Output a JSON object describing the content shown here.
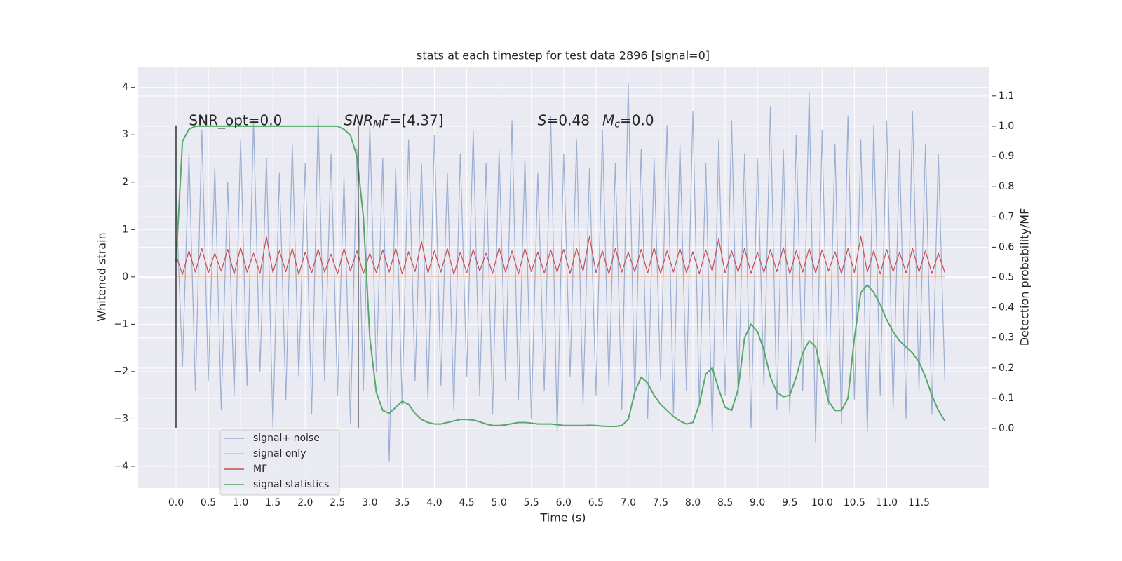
{
  "chart_data": {
    "type": "line",
    "title": "stats at each timestep for test data 2896 [signal=0]",
    "xlabel": "Time (s)",
    "ylabel": "Whitened strain",
    "y2label": "Detection probability/MF",
    "xlim": [
      -0.586,
      12.58
    ],
    "ylim": [
      -4.46,
      4.44
    ],
    "y2lim": [
      -0.197,
      1.197
    ],
    "xticks": [
      {
        "value": 0,
        "label": "0.0"
      },
      0.5,
      {
        "value": 1,
        "label": "1.0"
      },
      1.5,
      {
        "value": 2,
        "label": "2.0"
      },
      2.5,
      {
        "value": 3,
        "label": "3.0"
      },
      3.5,
      {
        "value": 4,
        "label": "4.0"
      },
      4.5,
      {
        "value": 5,
        "label": "5.0"
      },
      5.5,
      {
        "value": 6,
        "label": "6.0"
      },
      6.5,
      {
        "value": 7,
        "label": "7.0"
      },
      7.5,
      {
        "value": 8,
        "label": "8.0"
      },
      8.5,
      {
        "value": 9,
        "label": "9.0"
      },
      9.5,
      {
        "value": 10,
        "label": "10.0"
      },
      10.5,
      {
        "value": 11,
        "label": "11.0"
      },
      11.5
    ],
    "yticks": [
      {
        "value": -4,
        "label": "−4"
      },
      {
        "value": -3,
        "label": "−3"
      },
      {
        "value": -2,
        "label": "−2"
      },
      {
        "value": -1,
        "label": "−1"
      },
      0,
      1,
      2,
      3,
      4
    ],
    "y2ticks": [
      {
        "value": 0,
        "label": "0.0"
      },
      0.1,
      0.2,
      0.3,
      0.4,
      0.5,
      0.6,
      0.7,
      0.8,
      0.9,
      {
        "value": 1,
        "label": "1.0"
      },
      1.1
    ],
    "grid": true,
    "legend": "lower left",
    "x": [
      0,
      0.1,
      0.2,
      0.3,
      0.4,
      0.5,
      0.6,
      0.7,
      0.8,
      0.9,
      1,
      1.1,
      1.2,
      1.3,
      1.4,
      1.5,
      1.6,
      1.7,
      1.8,
      1.9,
      2,
      2.1,
      2.2,
      2.3,
      2.4,
      2.5,
      2.6,
      2.7,
      2.8,
      2.9,
      3,
      3.1,
      3.2,
      3.3,
      3.4,
      3.5,
      3.6,
      3.7,
      3.8,
      3.9,
      4,
      4.1,
      4.2,
      4.3,
      4.4,
      4.5,
      4.6,
      4.7,
      4.8,
      4.9,
      5,
      5.1,
      5.2,
      5.3,
      5.4,
      5.5,
      5.6,
      5.7,
      5.8,
      5.9,
      6,
      6.1,
      6.2,
      6.3,
      6.4,
      6.5,
      6.6,
      6.7,
      6.8,
      6.9,
      7,
      7.1,
      7.2,
      7.3,
      7.4,
      7.5,
      7.6,
      7.7,
      7.8,
      7.9,
      8,
      8.1,
      8.2,
      8.3,
      8.4,
      8.5,
      8.6,
      8.7,
      8.8,
      8.9,
      9,
      9.1,
      9.2,
      9.3,
      9.4,
      9.5,
      9.6,
      9.7,
      9.8,
      9.9,
      10,
      10.1,
      10.2,
      10.3,
      10.4,
      10.5,
      10.6,
      10.7,
      10.8,
      10.9,
      11,
      11.1,
      11.2,
      11.3,
      11.4,
      11.5,
      11.6,
      11.7,
      11.8,
      11.9
    ],
    "series": [
      {
        "name": "signal+ noise",
        "color": "#4c72b0",
        "alpha": 0.5,
        "values": [
          1.7,
          -1.9,
          2.6,
          -2.4,
          3.1,
          -2.2,
          2.3,
          -2.8,
          2.0,
          -2.5,
          2.9,
          -2.3,
          3.3,
          -2.0,
          2.5,
          -3.2,
          2.2,
          -2.6,
          2.8,
          -2.1,
          2.4,
          -2.9,
          3.4,
          -2.2,
          2.6,
          -2.5,
          2.1,
          -3.1,
          2.7,
          -2.4,
          3.2,
          -2.0,
          2.5,
          -3.9,
          2.3,
          -2.7,
          2.9,
          -2.2,
          2.4,
          -2.6,
          3.0,
          -2.3,
          2.2,
          -2.8,
          2.6,
          -2.1,
          3.1,
          -2.5,
          2.4,
          -2.9,
          2.7,
          -2.2,
          3.3,
          -2.6,
          2.5,
          -3.0,
          2.2,
          -2.4,
          3.4,
          -3.3,
          2.6,
          -2.1,
          2.9,
          -2.7,
          2.3,
          -2.5,
          3.1,
          -2.3,
          2.4,
          -2.8,
          4.1,
          -2.6,
          2.7,
          -3.0,
          2.5,
          -2.2,
          3.2,
          -2.9,
          2.8,
          -2.4,
          3.5,
          -2.7,
          2.4,
          -3.3,
          2.9,
          -2.5,
          3.3,
          -2.6,
          2.6,
          -3.2,
          2.5,
          -2.3,
          3.6,
          -2.8,
          2.7,
          -2.9,
          3.0,
          -2.4,
          3.9,
          -3.5,
          3.1,
          -2.7,
          2.8,
          -3.1,
          3.4,
          -2.6,
          2.9,
          -3.3,
          3.2,
          -2.5,
          3.3,
          -2.8,
          2.7,
          -3.0,
          3.5,
          -2.4,
          2.8,
          -2.9,
          2.6,
          -2.2
        ]
      },
      {
        "name": "signal only",
        "color": "#dd8452",
        "alpha": 0.5,
        "x": [
          0,
          11.9
        ],
        "values": [
          0,
          0
        ]
      },
      {
        "name": "MF",
        "color": "#c44e52",
        "alpha": 1,
        "values": [
          0.45,
          0.05,
          0.55,
          0.1,
          0.6,
          0.08,
          0.5,
          0.12,
          0.58,
          0.06,
          0.62,
          0.1,
          0.5,
          0.07,
          0.85,
          0.09,
          0.55,
          0.11,
          0.6,
          0.05,
          0.52,
          0.08,
          0.58,
          0.1,
          0.48,
          0.06,
          0.6,
          0.12,
          0.55,
          0.07,
          0.5,
          0.09,
          0.57,
          0.1,
          0.6,
          0.06,
          0.53,
          0.11,
          0.75,
          0.08,
          0.55,
          0.1,
          0.6,
          0.05,
          0.52,
          0.09,
          0.58,
          0.12,
          0.5,
          0.07,
          0.62,
          0.1,
          0.55,
          0.06,
          0.6,
          0.11,
          0.52,
          0.08,
          0.57,
          0.1,
          0.58,
          0.07,
          0.6,
          0.12,
          0.85,
          0.09,
          0.55,
          0.06,
          0.6,
          0.1,
          0.52,
          0.11,
          0.58,
          0.08,
          0.62,
          0.07,
          0.55,
          0.1,
          0.6,
          0.09,
          0.53,
          0.06,
          0.57,
          0.12,
          0.8,
          0.08,
          0.55,
          0.1,
          0.6,
          0.07,
          0.52,
          0.09,
          0.58,
          0.11,
          0.62,
          0.06,
          0.55,
          0.1,
          0.6,
          0.08,
          0.57,
          0.12,
          0.53,
          0.07,
          0.6,
          0.09,
          0.85,
          0.1,
          0.55,
          0.06,
          0.58,
          0.11,
          0.52,
          0.08,
          0.6,
          0.1,
          0.55,
          0.07,
          0.5,
          0.09
        ]
      },
      {
        "name": "signal statistics",
        "color": "#55a868",
        "alpha": 1,
        "axis": "y2",
        "values": [
          0.55,
          0.95,
          0.99,
          1,
          1,
          1,
          1,
          1,
          1,
          1,
          1,
          1,
          1,
          1,
          1,
          1,
          1,
          1,
          1,
          1,
          1,
          1,
          1,
          1,
          1,
          1,
          0.99,
          0.97,
          0.9,
          0.7,
          0.3,
          0.12,
          0.06,
          0.05,
          0.07,
          0.09,
          0.08,
          0.05,
          0.03,
          0.02,
          0.015,
          0.015,
          0.02,
          0.025,
          0.03,
          0.03,
          0.028,
          0.022,
          0.015,
          0.01,
          0.01,
          0.012,
          0.016,
          0.02,
          0.02,
          0.018,
          0.015,
          0.015,
          0.015,
          0.013,
          0.01,
          0.01,
          0.01,
          0.01,
          0.011,
          0.01,
          0.008,
          0.007,
          0.007,
          0.01,
          0.03,
          0.12,
          0.17,
          0.15,
          0.11,
          0.08,
          0.06,
          0.04,
          0.025,
          0.015,
          0.02,
          0.08,
          0.18,
          0.2,
          0.13,
          0.07,
          0.06,
          0.13,
          0.3,
          0.345,
          0.32,
          0.26,
          0.17,
          0.12,
          0.105,
          0.11,
          0.17,
          0.25,
          0.29,
          0.27,
          0.18,
          0.09,
          0.06,
          0.06,
          0.1,
          0.3,
          0.45,
          0.475,
          0.45,
          0.41,
          0.36,
          0.32,
          0.29,
          0.27,
          0.25,
          0.22,
          0.17,
          0.11,
          0.06,
          0.025
        ]
      }
    ],
    "vlines": {
      "x": [
        0,
        2.82
      ],
      "ymin": -3.2,
      "ymax": 3.2,
      "color": "#333333"
    },
    "annotations": [
      {
        "x": 0.2,
        "y": 3.29,
        "parts": [
          {
            "text": "SNR_opt=0.0"
          }
        ]
      },
      {
        "x": 2.6,
        "y": 3.29,
        "parts": [
          {
            "text": "SNR",
            "style": "italic"
          },
          {
            "text": "M",
            "style": "italic-sub"
          },
          {
            "text": "F",
            "style": "italic"
          },
          {
            "text": "=[4.37]"
          }
        ]
      },
      {
        "x": 5.6,
        "y": 3.29,
        "parts": [
          {
            "text": "S",
            "style": "italic"
          },
          {
            "text": "=0.48"
          }
        ]
      },
      {
        "x": 6.6,
        "y": 3.29,
        "parts": [
          {
            "text": "M",
            "style": "italic"
          },
          {
            "text": "c",
            "style": "italic-sub"
          },
          {
            "text": "=0.0"
          }
        ]
      }
    ]
  }
}
